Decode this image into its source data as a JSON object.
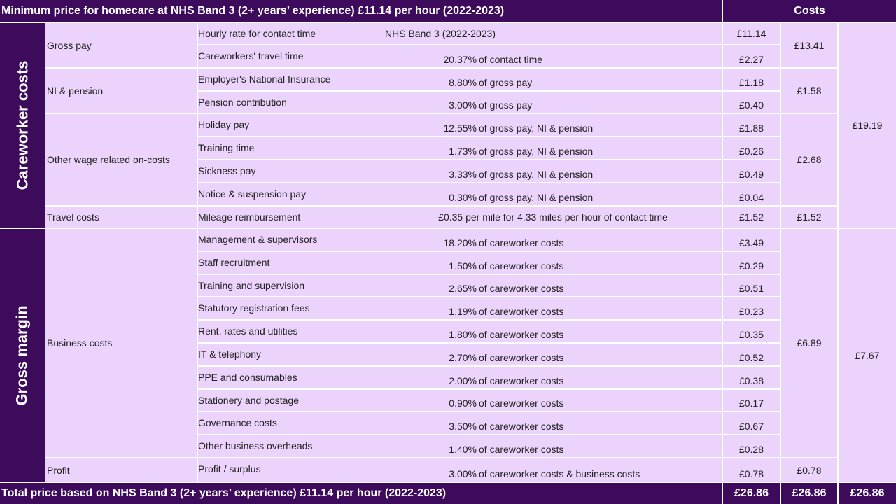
{
  "header": {
    "title": "Minimum price for homecare at NHS Band 3 (2+ years’ experience) £11.14 per hour (2022-2023)",
    "costs_label": "Costs"
  },
  "sections": {
    "careworker": "Careworker costs",
    "margin": "Gross margin"
  },
  "categories": {
    "gross_pay": "Gross pay",
    "ni_pension": "NI & pension",
    "other_wage": "Other wage related on-costs",
    "travel": "Travel costs",
    "business": "Business costs",
    "profit": "Profit"
  },
  "rows": [
    {
      "item": "Hourly rate for contact time",
      "pct": "",
      "basis": "NHS Band 3 (2022-2023)",
      "cost": "£11.14"
    },
    {
      "item": "Careworkers' travel time",
      "pct": "20.37%",
      "basis": "of contact time",
      "cost": "£2.27"
    },
    {
      "item": "Employer's National Insurance",
      "pct": "8.80%",
      "basis": "of gross pay",
      "cost": "£1.18"
    },
    {
      "item": "Pension contribution",
      "pct": "3.00%",
      "basis": "of gross pay",
      "cost": "£0.40"
    },
    {
      "item": "Holiday pay",
      "pct": "12.55%",
      "basis": "of gross pay, NI & pension",
      "cost": "£1.88"
    },
    {
      "item": "Training time",
      "pct": "1.73%",
      "basis": "of gross pay, NI & pension",
      "cost": "£0.26"
    },
    {
      "item": "Sickness pay",
      "pct": "3.33%",
      "basis": "of gross pay, NI & pension",
      "cost": "£0.49"
    },
    {
      "item": "Notice & suspension pay",
      "pct": "0.30%",
      "basis": "of gross pay, NI & pension",
      "cost": "£0.04"
    },
    {
      "item": "Mileage reimbursement",
      "pct": "",
      "basis": "£0.35 per mile for 4.33 miles per hour of contact time",
      "cost": "£1.52"
    },
    {
      "item": "Management & supervisors",
      "pct": "18.20%",
      "basis": "of careworker costs",
      "cost": "£3.49"
    },
    {
      "item": "Staff recruitment",
      "pct": "1.50%",
      "basis": "of careworker costs",
      "cost": "£0.29"
    },
    {
      "item": "Training and supervision",
      "pct": "2.65%",
      "basis": "of careworker costs",
      "cost": "£0.51"
    },
    {
      "item": "Statutory registration fees",
      "pct": "1.19%",
      "basis": "of careworker costs",
      "cost": "£0.23"
    },
    {
      "item": "Rent, rates and utilities",
      "pct": "1.80%",
      "basis": "of careworker costs",
      "cost": "£0.35"
    },
    {
      "item": "IT & telephony",
      "pct": "2.70%",
      "basis": "of careworker costs",
      "cost": "£0.52"
    },
    {
      "item": "PPE and consumables",
      "pct": "2.00%",
      "basis": "of careworker costs",
      "cost": "£0.38"
    },
    {
      "item": "Stationery and postage",
      "pct": "0.90%",
      "basis": "of careworker costs",
      "cost": "£0.17"
    },
    {
      "item": "Governance costs",
      "pct": "3.50%",
      "basis": "of careworker costs",
      "cost": "£0.67"
    },
    {
      "item": "Other business overheads",
      "pct": "1.40%",
      "basis": "of careworker costs",
      "cost": "£0.28"
    },
    {
      "item": "Profit / surplus",
      "pct": "3.00%",
      "basis": "of careworker costs & business costs",
      "cost": "£0.78"
    }
  ],
  "subtotals": {
    "gross_pay": "£13.41",
    "ni_pension": "£1.58",
    "other_wage": "£2.68",
    "travel": "£1.52",
    "business": "£6.89",
    "profit": "£0.78"
  },
  "group_totals": {
    "careworker": "£19.19",
    "margin": "£7.67"
  },
  "footer": {
    "title": "Total price based on NHS Band 3 (2+ years’ experience) £11.14 per hour (2022-2023)",
    "total_items": "£26.86",
    "total_subtotals": "£26.86",
    "total_groups": "£26.86"
  }
}
